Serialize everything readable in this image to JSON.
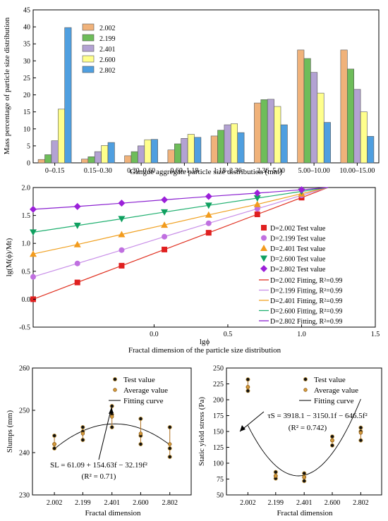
{
  "colors": {
    "D2002": "#f0b27a",
    "D2199": "#6ebd5a",
    "D2401": "#b3a2d3",
    "D2600": "#ffff8c",
    "D2802": "#4f9fe0",
    "line2002": "#e03020",
    "line2199": "#c88ee8",
    "line2401": "#f0a020",
    "line2600": "#20b070",
    "line2802": "#8a20d0",
    "marker2002": "#e02020",
    "marker2199": "#c070e0",
    "marker2401": "#f29b1d",
    "marker2600": "#10a060",
    "marker2802": "#9b20d9"
  },
  "chart_data": [
    {
      "type": "bar",
      "xlabel": "Gangue aggregate particle size distribution (mm)",
      "ylabel": "Mass percentage of particle size distribution",
      "ylim": [
        0,
        45
      ],
      "yticks": [
        "0",
        "5",
        "10",
        "15",
        "20",
        "25",
        "30",
        "35",
        "40",
        "45"
      ],
      "categories": [
        "0–0.15",
        "0.15–0.30",
        "0.30–0.60",
        "0.60–1.18",
        "1.18–2.36",
        "2.36–5.00",
        "5.00–10.00",
        "10.00–15.00"
      ],
      "legend_position": "top-left",
      "series": [
        {
          "name": "2.002",
          "values": [
            1.0,
            1.1,
            2.1,
            3.8,
            7.9,
            17.6,
            33.2,
            33.2
          ]
        },
        {
          "name": "2.199",
          "values": [
            2.4,
            1.8,
            3.3,
            5.6,
            9.6,
            18.6,
            30.7,
            27.6
          ]
        },
        {
          "name": "2.401",
          "values": [
            6.5,
            3.3,
            5.0,
            7.2,
            11.2,
            18.7,
            26.6,
            21.6
          ]
        },
        {
          "name": "2.600",
          "values": [
            15.8,
            5.1,
            6.8,
            8.4,
            11.5,
            16.6,
            20.5,
            15.0
          ]
        },
        {
          "name": "2.802",
          "values": [
            39.8,
            6.0,
            6.9,
            7.5,
            8.9,
            11.2,
            11.9,
            7.8
          ]
        }
      ]
    },
    {
      "type": "scatter",
      "xlabel": "lgϕ",
      "ylabel": "lg(M(ϕ)/Mt)",
      "bottom_label": "Fractal dimension of the particle size distribution",
      "xlim": [
        -0.82,
        1.5
      ],
      "ylim": [
        -0.5,
        2.0
      ],
      "xticks": [
        "0.0",
        "0.5",
        "1.0",
        "1.5"
      ],
      "yticks": [
        "-0.5",
        "0.0",
        "0.5",
        "1.0",
        "1.5",
        "2.0"
      ],
      "x": [
        -0.82,
        -0.52,
        -0.22,
        0.07,
        0.37,
        0.7,
        1.0,
        1.18
      ],
      "legend_position": "right",
      "series": [
        {
          "name": "D=2.002 Test value",
          "fit_name": "D=2.002 Fitting, R²=0.99",
          "marker": "square",
          "values": [
            0.0,
            0.3,
            0.6,
            0.89,
            1.19,
            1.52,
            1.82,
            2.0
          ]
        },
        {
          "name": "D=2.199 Test value",
          "fit_name": "D=2.199 Fitting, R²=0.99",
          "marker": "circle",
          "values": [
            0.4,
            0.64,
            0.88,
            1.12,
            1.36,
            1.62,
            1.86,
            2.0
          ]
        },
        {
          "name": "D=2.401 Test value",
          "fit_name": "D=2.401 Fitting, R²=0.99",
          "marker": "triangle-up",
          "values": [
            0.81,
            0.98,
            1.16,
            1.33,
            1.51,
            1.7,
            1.89,
            2.0
          ]
        },
        {
          "name": "D=2.600 Test value",
          "fit_name": "D=2.600 Fitting, R²=0.99",
          "marker": "triangle-down",
          "values": [
            1.2,
            1.32,
            1.44,
            1.56,
            1.68,
            1.81,
            1.93,
            2.0
          ]
        },
        {
          "name": "D=2.802 Test value",
          "fit_name": "D=2.802 Fitting, R²=0.99",
          "marker": "diamond",
          "values": [
            1.61,
            1.66,
            1.72,
            1.78,
            1.84,
            1.9,
            1.96,
            2.0
          ]
        }
      ]
    },
    {
      "type": "scatter",
      "xlabel": "Fractal dimension",
      "ylabel": "Slumps (mm)",
      "ylim": [
        230,
        260
      ],
      "yticks": [
        "230",
        "240",
        "250",
        "260"
      ],
      "categories": [
        "2.002",
        "2.199",
        "2.401",
        "2.600",
        "2.802"
      ],
      "x": [
        2.002,
        2.199,
        2.401,
        2.6,
        2.802
      ],
      "legend": [
        "Test value",
        "Average value",
        "Fitting curve"
      ],
      "legend_position": "top-right",
      "equation": "SL = 61.09 + 154.63f − 32.19f²",
      "r2": "(R² = 0.71)",
      "test_values": [
        [
          241.0,
          242.0,
          244.0
        ],
        [
          243.0,
          245.0,
          246.0
        ],
        [
          246.0,
          249.0,
          251.0
        ],
        [
          242.0,
          244.0,
          248.0
        ],
        [
          239.0,
          241.0,
          246.0
        ]
      ],
      "average_values": [
        242.0,
        244.5,
        248.5,
        244.5,
        242.0
      ]
    },
    {
      "type": "scatter",
      "xlabel": "Fractal dimension",
      "ylabel": "Static yield stress (Pa)",
      "ylim": [
        50,
        250
      ],
      "yticks": [
        "50",
        "75",
        "100",
        "125",
        "150",
        "175",
        "200",
        "225",
        "250"
      ],
      "categories": [
        "2.002",
        "2.199",
        "2.401",
        "2.600",
        "2.802"
      ],
      "x": [
        2.002,
        2.199,
        2.401,
        2.6,
        2.802
      ],
      "legend": [
        "Test value",
        "Average value",
        "Fitting curve"
      ],
      "legend_position": "top-right",
      "equation": "τS = 3918.1 − 3150.1f − 646.5f²",
      "r2": "(R² = 0.742)",
      "test_values": [
        [
          214.0,
          220.0,
          232.0
        ],
        [
          76.0,
          80.0,
          86.0
        ],
        [
          72.0,
          78.0,
          84.0
        ],
        [
          128.0,
          136.0,
          142.0
        ],
        [
          136.0,
          150.0,
          156.0
        ]
      ],
      "average_values": [
        220.0,
        80.0,
        78.0,
        136.0,
        148.0
      ]
    }
  ]
}
